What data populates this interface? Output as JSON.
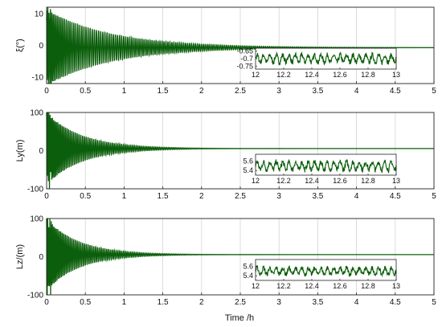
{
  "colors": {
    "series": "#0b5e0b",
    "grid": "#d4d4d4",
    "axis": "#222222"
  },
  "xlabel": "Time /h",
  "chart_data": [
    {
      "type": "line",
      "ylabel": "ξ(°)",
      "xlim": [
        0,
        5
      ],
      "ylim": [
        -12,
        12
      ],
      "xticks": [
        "0",
        "0.5",
        "1",
        "1.5",
        "2",
        "2.5",
        "3",
        "3.5",
        "4",
        "4.5",
        "5"
      ],
      "yticks": [
        "10",
        "0",
        "-10"
      ],
      "grid": true,
      "signal": {
        "initial_amplitude": 12,
        "decay_per_hour": 1.2,
        "steady_value": -0.7,
        "oscillation_cycles_per_hour": 40
      },
      "inset": {
        "xlim": [
          12,
          13
        ],
        "ylim": [
          -0.77,
          -0.63
        ],
        "xticks": [
          "12",
          "12.2",
          "12.4",
          "12.6",
          "12.8",
          "13"
        ],
        "yticks": [
          "-0.65",
          "-0.7",
          "-0.75"
        ],
        "mean": -0.7,
        "amplitude": 0.035
      }
    },
    {
      "type": "line",
      "ylabel": "Ly(m)",
      "xlim": [
        0,
        5
      ],
      "ylim": [
        -100,
        100
      ],
      "xticks": [
        "0",
        "0.5",
        "1",
        "1.5",
        "2",
        "2.5",
        "3",
        "3.5",
        "4",
        "4.5",
        "5"
      ],
      "yticks": [
        "100",
        "0",
        "-100"
      ],
      "grid": true,
      "signal": {
        "initial_amplitude": 95,
        "decay_per_hour": 2.2,
        "steady_value": 5.5,
        "oscillation_cycles_per_hour": 45
      },
      "inset": {
        "xlim": [
          12,
          13
        ],
        "ylim": [
          5.3,
          5.75
        ],
        "xticks": [
          "12",
          "12.2",
          "12.4",
          "12.6",
          "12.8",
          "13"
        ],
        "yticks": [
          "5.6",
          "5.4"
        ],
        "mean": 5.5,
        "amplitude": 0.12
      }
    },
    {
      "type": "line",
      "ylabel": "Lz/(m)",
      "xlim": [
        0,
        5
      ],
      "ylim": [
        -100,
        100
      ],
      "xticks": [
        "0",
        "0.5",
        "1",
        "1.5",
        "2",
        "2.5",
        "3",
        "3.5",
        "4",
        "4.5",
        "5"
      ],
      "yticks": [
        "100",
        "0",
        "-100"
      ],
      "grid": true,
      "signal": {
        "initial_amplitude": 95,
        "decay_per_hour": 2.4,
        "steady_value": 5.5,
        "oscillation_cycles_per_hour": 45
      },
      "inset": {
        "xlim": [
          12,
          13
        ],
        "ylim": [
          5.3,
          5.75
        ],
        "xticks": [
          "12",
          "12.2",
          "12.4",
          "12.6",
          "12.8",
          "13"
        ],
        "yticks": [
          "5.6",
          "5.4"
        ],
        "mean": 5.5,
        "amplitude": 0.1
      }
    }
  ]
}
